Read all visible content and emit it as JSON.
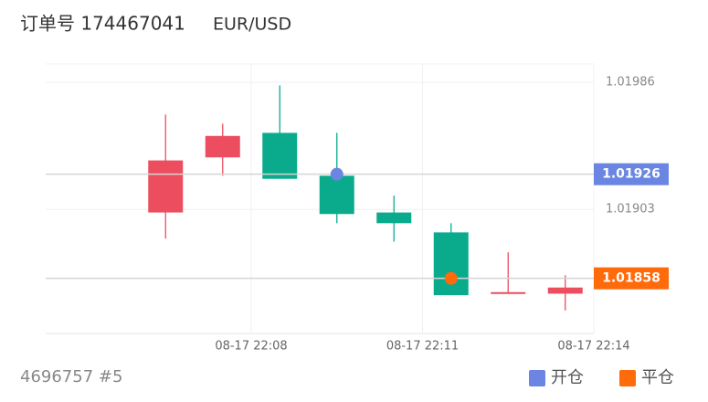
{
  "chart_data": {
    "type": "candlestick",
    "title": "订单号 174467041",
    "subtitle": "EUR/USD",
    "footer": "4696757 #5",
    "categories": [
      null,
      null,
      null,
      null,
      null,
      null,
      null,
      null
    ],
    "open": [
      1.01935,
      1.01951,
      1.01923,
      1.019,
      1.01894,
      1.01847,
      1.01849,
      1.01852
    ],
    "high": [
      1.01965,
      1.01959,
      1.01984,
      1.01953,
      1.01912,
      1.01894,
      1.01875,
      1.0186
    ],
    "low": [
      1.01884,
      1.01925,
      1.01923,
      1.01894,
      1.01882,
      1.01847,
      1.01848,
      1.01837
    ],
    "close": [
      1.01901,
      1.01937,
      1.01953,
      1.01925,
      1.01901,
      1.01888,
      1.01848,
      1.01848
    ],
    "up_color": "#0aab8c",
    "down_color": "#ec4d5f",
    "markers": [
      {
        "name": "开仓",
        "color": "#6b86e2",
        "x": 3,
        "value": 1.01926
      },
      {
        "name": "平仓",
        "color": "#ff6a0a",
        "x": 5,
        "value": 1.01858
      }
    ],
    "ylim": [
      1.01822,
      1.01998
    ],
    "yticks": [
      1.01986,
      1.01903
    ],
    "xlim": [
      -2.1,
      7.5
    ],
    "xticks": [
      {
        "value": 1.5,
        "label": "08-17 22:08"
      },
      {
        "value": 4.5,
        "label": "08-17 22:11"
      },
      {
        "value": 7.5,
        "label": "08-17 22:14"
      }
    ],
    "grid": true
  }
}
